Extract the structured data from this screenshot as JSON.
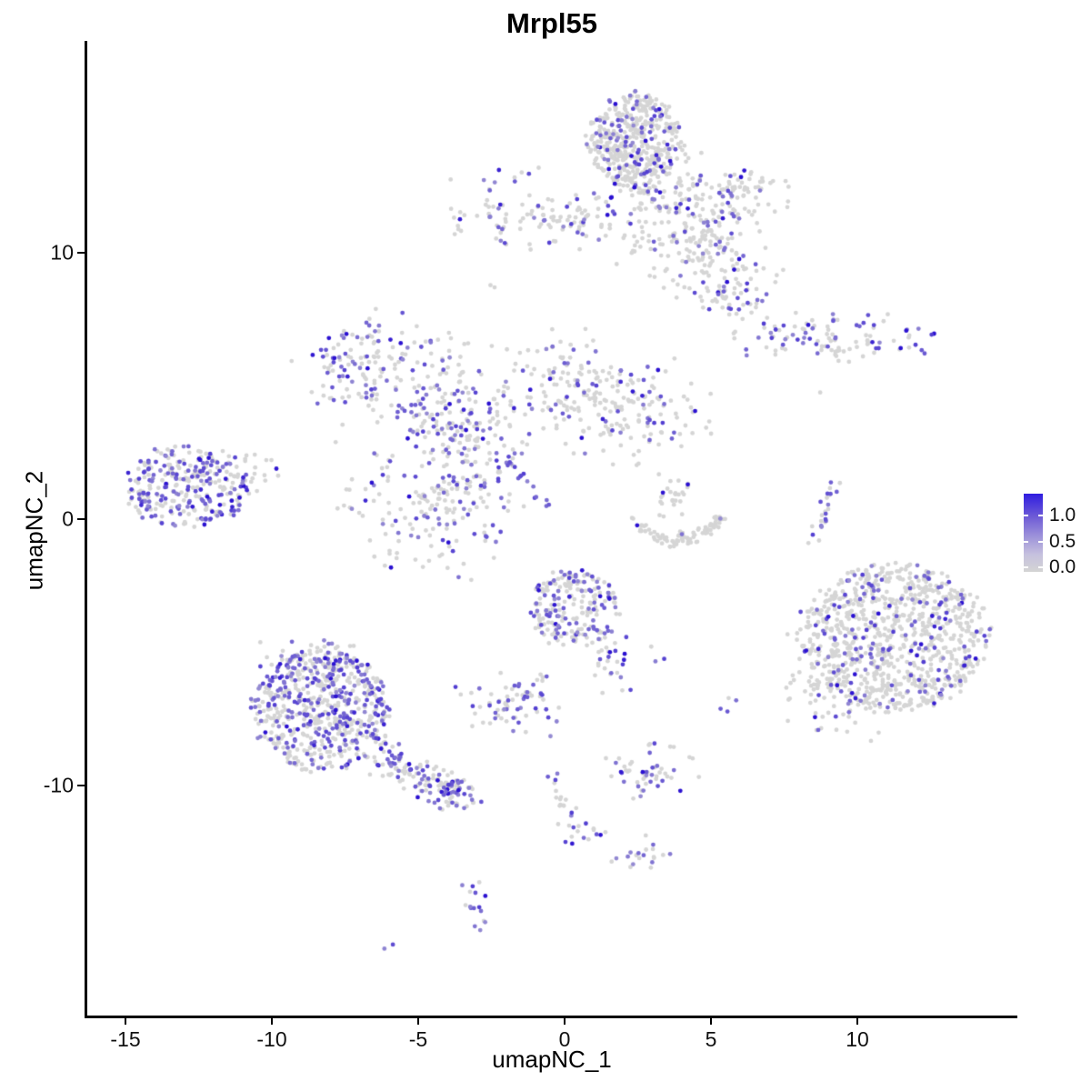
{
  "title": "Mrpl55",
  "axes": {
    "x": {
      "label": "umapNC_1",
      "ticks": [
        -15,
        -10,
        -5,
        0,
        5,
        10
      ]
    },
    "y": {
      "label": "umapNC_2",
      "ticks": [
        -10,
        0,
        10
      ]
    }
  },
  "legend": {
    "labels": [
      "1.0",
      "0.5",
      "0.0"
    ],
    "high_color": "#2f1de0",
    "low_color": "#d4d4d4"
  },
  "colors": {
    "point_gray": "#d5d5d5",
    "point_high": "#2b11d1",
    "axis": "#000000",
    "background": "#ffffff"
  },
  "chart_data": {
    "type": "scatter",
    "title": "Mrpl55",
    "xlabel": "umapNC_1",
    "ylabel": "umapNC_2",
    "xlim": [
      -16.7,
      15.4
    ],
    "ylim": [
      -18.7,
      17.9
    ],
    "x_ticks": [
      -15,
      -10,
      -5,
      0,
      5,
      10
    ],
    "y_ticks": [
      -10,
      0,
      10
    ],
    "legend_values": [
      1.0,
      0.5,
      0.0
    ],
    "grid": false,
    "legend_position": "right",
    "point_radius_px": 2.4,
    "description": "UMAP feature plot of gene Mrpl55 expression; cells colored lightgrey (0.0) to blue (1.0+). Clusters given as generative summaries: center (x,y), spread, point count n, purple fraction pf.",
    "clusters": [
      {
        "type": "disk",
        "x": 2.4,
        "y": 14.2,
        "rx": 1.6,
        "ry": 1.75,
        "n": 450,
        "pf": 0.2
      },
      {
        "type": "blob",
        "x": 3.9,
        "y": 11.5,
        "sx": 1.3,
        "sy": 1.15,
        "n": 190,
        "pf": 0.16
      },
      {
        "type": "blob",
        "x": 5.3,
        "y": 9.8,
        "sx": 1.05,
        "sy": 0.95,
        "n": 110,
        "pf": 0.2
      },
      {
        "type": "blob",
        "x": 5.9,
        "y": 12.2,
        "sx": 0.8,
        "sy": 0.6,
        "n": 60,
        "pf": 0.22
      },
      {
        "type": "blob",
        "x": 0.9,
        "y": 11.2,
        "sx": 0.7,
        "sy": 0.5,
        "n": 45,
        "pf": 0.25
      },
      {
        "type": "blob",
        "x": 5.6,
        "y": 8.3,
        "sx": 0.6,
        "sy": 0.45,
        "n": 35,
        "pf": 0.3
      },
      {
        "type": "blob",
        "x": -1.9,
        "y": 11.6,
        "sx": 0.95,
        "sy": 0.75,
        "n": 65,
        "pf": 0.35
      },
      {
        "type": "blob",
        "x": -0.3,
        "y": 11.3,
        "sx": 0.55,
        "sy": 0.3,
        "n": 15,
        "pf": 0.1
      },
      {
        "type": "blob",
        "x": -2.4,
        "y": 8.9,
        "sx": 0.12,
        "sy": 0.12,
        "n": 2,
        "pf": 0
      },
      {
        "type": "blob",
        "x": 8.8,
        "y": 6.9,
        "sx": 1.75,
        "sy": 0.42,
        "n": 95,
        "pf": 0.45
      },
      {
        "type": "streak",
        "x": 9.2,
        "y": 6.4,
        "x2": 9.8,
        "y2": 5.8,
        "jitter": 0.12,
        "n": 10,
        "pf": 0
      },
      {
        "type": "blob",
        "x": 8.7,
        "y": 4.8,
        "sx": 0.1,
        "sy": 0.1,
        "n": 1,
        "pf": 0
      },
      {
        "type": "blob",
        "x": -6.4,
        "y": 5.7,
        "sx": 1.4,
        "sy": 1.0,
        "n": 160,
        "pf": 0.4
      },
      {
        "type": "blob",
        "x": -4.4,
        "y": 4.0,
        "sx": 0.95,
        "sy": 0.6,
        "n": 60,
        "pf": 0.5
      },
      {
        "type": "blob",
        "x": -3.6,
        "y": 5.4,
        "sx": 0.4,
        "sy": 0.95,
        "n": 25,
        "pf": 0.2
      },
      {
        "type": "blob",
        "x": -3.1,
        "y": 2.3,
        "sx": 0.95,
        "sy": 1.2,
        "n": 110,
        "pf": 0.35
      },
      {
        "type": "blob",
        "x": -4.8,
        "y": 0.6,
        "sx": 1.4,
        "sy": 1.35,
        "n": 160,
        "pf": 0.35
      },
      {
        "type": "blob",
        "x": -0.2,
        "y": 4.8,
        "sx": 1.25,
        "sy": 1.2,
        "n": 130,
        "pf": 0.25
      },
      {
        "type": "blob",
        "x": 2.3,
        "y": 4.1,
        "sx": 1.25,
        "sy": 1.0,
        "n": 130,
        "pf": 0.3
      },
      {
        "type": "streak",
        "x": -2.0,
        "y": 2.3,
        "x2": -0.7,
        "y2": 0.6,
        "jitter": 0.12,
        "n": 16,
        "pf": 0.85
      },
      {
        "type": "disk",
        "x": -12.9,
        "y": 1.2,
        "rx": 2.1,
        "ry": 1.55,
        "n": 300,
        "pf": 0.5
      },
      {
        "type": "blob",
        "x": -11.0,
        "y": 1.8,
        "sx": 0.7,
        "sy": 0.4,
        "n": 25,
        "pf": 0.12
      },
      {
        "type": "arc",
        "x": 3.85,
        "y": 0.3,
        "rx": 1.4,
        "ry": 1.1,
        "a0": 190,
        "a1": 350,
        "jitter": 0.16,
        "n": 85,
        "pf": 0.02
      },
      {
        "type": "blob",
        "x": 3.7,
        "y": 0.85,
        "sx": 0.45,
        "sy": 0.4,
        "n": 28,
        "pf": 0.06
      },
      {
        "type": "streak",
        "x": 9.15,
        "y": 1.3,
        "x2": 8.55,
        "y2": -1.0,
        "jitter": 0.14,
        "n": 24,
        "pf": 0.5
      },
      {
        "type": "disk",
        "x": 11.3,
        "y": -4.4,
        "rx": 3.1,
        "ry": 2.85,
        "n": 900,
        "pf": 0.18
      },
      {
        "type": "blob",
        "x": 9.0,
        "y": -6.6,
        "sx": 0.8,
        "sy": 0.8,
        "n": 70,
        "pf": 0.15
      },
      {
        "type": "blob",
        "x": 8.5,
        "y": -4.0,
        "sx": 0.5,
        "sy": 0.9,
        "n": 25,
        "pf": 0.1
      },
      {
        "type": "disk",
        "x": 0.3,
        "y": -3.4,
        "rx": 1.55,
        "ry": 1.45,
        "n": 220,
        "pf": 0.35
      },
      {
        "type": "blob",
        "x": 1.5,
        "y": -5.3,
        "sx": 0.45,
        "sy": 0.6,
        "n": 28,
        "pf": 0.4
      },
      {
        "type": "streak",
        "x": -0.6,
        "y": -6.0,
        "x2": -1.4,
        "y2": -6.7,
        "jitter": 0.1,
        "n": 8,
        "pf": 0.25
      },
      {
        "type": "blob",
        "x": -1.9,
        "y": -7.0,
        "sx": 0.9,
        "sy": 0.6,
        "n": 65,
        "pf": 0.4
      },
      {
        "type": "blob",
        "x": 3.1,
        "y": -5.0,
        "sx": 0.25,
        "sy": 0.2,
        "n": 3,
        "pf": 0.5
      },
      {
        "type": "blob",
        "x": 5.7,
        "y": -7.1,
        "sx": 0.25,
        "sy": 0.25,
        "n": 4,
        "pf": 0.7
      },
      {
        "type": "disk",
        "x": -8.3,
        "y": -7.2,
        "rx": 2.35,
        "ry": 2.25,
        "n": 620,
        "pf": 0.42
      },
      {
        "type": "blob",
        "x": -8.6,
        "y": -5.3,
        "sx": 0.9,
        "sy": 0.4,
        "n": 60,
        "pf": 0.45
      },
      {
        "type": "streak",
        "x": -6.3,
        "y": -8.9,
        "x2": -3.7,
        "y2": -10.3,
        "jitter": 0.35,
        "n": 130,
        "pf": 0.33
      },
      {
        "type": "blob",
        "x": -3.8,
        "y": -10.35,
        "sx": 0.5,
        "sy": 0.3,
        "n": 28,
        "pf": 0.55
      },
      {
        "type": "blob",
        "x": 2.9,
        "y": -9.5,
        "sx": 0.85,
        "sy": 0.5,
        "n": 50,
        "pf": 0.38
      },
      {
        "type": "blob",
        "x": 3.1,
        "y": -8.6,
        "sx": 0.15,
        "sy": 0.15,
        "n": 2,
        "pf": 0.5
      },
      {
        "type": "blob",
        "x": -0.5,
        "y": -9.4,
        "sx": 0.2,
        "sy": 0.25,
        "n": 4,
        "pf": 0.75
      },
      {
        "type": "streak",
        "x": -0.2,
        "y": -10.0,
        "x2": 0.1,
        "y2": -11.0,
        "jitter": 0.12,
        "n": 9,
        "pf": 0
      },
      {
        "type": "blob",
        "x": 0.4,
        "y": -11.8,
        "sx": 0.35,
        "sy": 0.5,
        "n": 15,
        "pf": 0.5
      },
      {
        "type": "streak",
        "x": 0.9,
        "y": -11.8,
        "x2": 1.5,
        "y2": -11.8,
        "jitter": 0.08,
        "n": 4,
        "pf": 0.2
      },
      {
        "type": "blob",
        "x": 2.6,
        "y": -12.6,
        "sx": 0.5,
        "sy": 0.35,
        "n": 20,
        "pf": 0.4
      },
      {
        "type": "streak",
        "x": -3.2,
        "y": -13.6,
        "x2": -2.95,
        "y2": -15.3,
        "jitter": 0.22,
        "n": 16,
        "pf": 0.65
      },
      {
        "type": "blob",
        "x": -5.9,
        "y": -16.1,
        "sx": 0.18,
        "sy": 0.12,
        "n": 2,
        "pf": 0.5
      }
    ]
  }
}
